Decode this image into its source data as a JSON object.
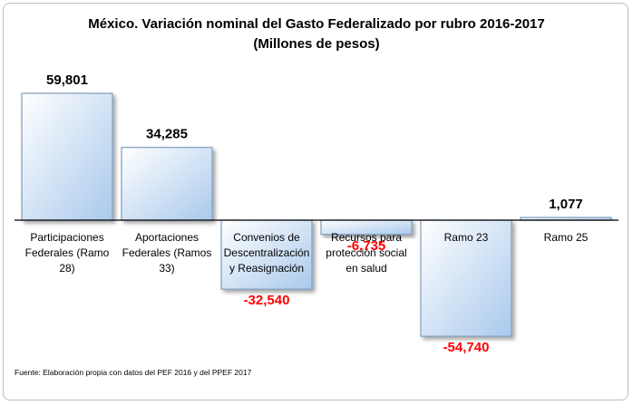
{
  "chart_data": {
    "type": "bar",
    "title": "México. Variación nominal del Gasto Federalizado por rubro 2016-2017",
    "subtitle": "(Millones de pesos)",
    "categories": [
      "Participaciones Federales (Ramo 28)",
      "Aportaciones Federales (Ramos 33)",
      "Convenios de Descentralización y Reasignación",
      "Recursos para protección social en salud",
      "Ramo 23",
      "Ramo 25"
    ],
    "category_lines": [
      [
        "Participaciones",
        "Federales (Ramo",
        "28)"
      ],
      [
        "Aportaciones",
        "Federales (Ramos",
        "33)"
      ],
      [
        "Convenios de",
        "Descentralización",
        "y Reasignación"
      ],
      [
        "Recursos para",
        "protección social",
        "en salud"
      ],
      [
        "Ramo 23"
      ],
      [
        "Ramo 25"
      ]
    ],
    "values": [
      59801,
      34285,
      -32540,
      -6735,
      -54740,
      1077
    ],
    "value_labels": [
      "59,801",
      "34,285",
      "-32,540",
      "-6,735",
      "-54,740",
      "1,077"
    ],
    "ylim": [
      -60000,
      70000
    ],
    "xlabel": "",
    "ylabel": "",
    "grid": false,
    "legend": "none",
    "colors": {
      "bar_fill_light": "#ffffff",
      "bar_fill_dark": "#a9c9ec",
      "bar_stroke": "#7f9cbc",
      "positive_label": "#000000",
      "negative_label": "#ff0000",
      "axis": "#000000"
    }
  },
  "source": "Fuente: Elaboración propia con datos del PEF 2016 y del PPEF 2017"
}
